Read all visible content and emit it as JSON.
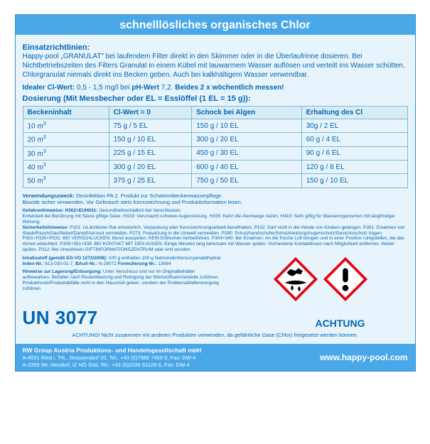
{
  "title": "schnelllösliches organisches Chlor",
  "sections": {
    "einsatz_hdr": "Einsatzrichtlinien:",
    "einsatz_text": "Happy-pool „GRANULAT\" bei laufendem Filter direkt in den Skimmer oder in die Überlaufrinne dosieren. Bei Nichtbetriebszeiten des Filters Granulat in einem Kübel mit lauwarmem Wasser auflösen und verteilt ins Wasser schütten. Chlorgranulat niemals direkt ins Becken geben. Auch bei kalkhältigem Wasser verwendbar.",
    "ideal_pre": "Idealer Cl-Wert:",
    "ideal_val": "0,5 - 1,5 mg/l bei",
    "ideal_ph": "pH-Wert",
    "ideal_phv": "7,2.",
    "ideal_post": "Beides 2 x wöchentlich messen!",
    "dosierung_hdr": "Dosierung (Mit Messbecher oder EL = Esslöffel (1 EL = 15 g)):"
  },
  "table": {
    "headers": [
      "Beckeninhalt",
      "Cl-Wert = 0",
      "Schock bei Algen",
      "Erhaltung des Cl"
    ],
    "rows": [
      [
        "10 m³",
        "75 g / 5 EL",
        "150 g / 10 EL",
        "30g / 2 EL"
      ],
      [
        "20 m³",
        "150 g / 10 EL",
        "300 g / 20 EL",
        "60 g / 4 EL"
      ],
      [
        "30 m³",
        "225 g / 15 EL",
        "450 g / 30 EL",
        "90 g / 6 EL"
      ],
      [
        "40 m³",
        "300 g / 20 EL",
        "600 g / 40 EL",
        "120 g / 8 EL"
      ],
      [
        "50 m³",
        "375 g / 25 EL",
        "750 g / 50 EL",
        "150 g / 10 EL"
      ]
    ]
  },
  "usage": {
    "zweck_b": "Verwendungszweck:",
    "zweck": " Desinfektion PA 2. Produkt zur Schwimmbeckenwasserpflege.",
    "biozide": "Biozide sicher verwenden. Vor Gebrauch stets Kennzeichnung und Produktinformation lesen."
  },
  "hazard": {
    "gefahr_b": "Gefahrenhinweise: H302+EUH031:",
    "gefahr": " Gesundheitsschädlich bei Verschlucken.",
    "gefahr2": "Entwickelt bei Berührung mit Säure giftige Gase. H319: Verursacht schwere Augenreizung. H335: Kann die Atemwege reizen. H410: Sehr giftig für Wasserorganismen mit langfristiger Wirkung.",
    "sicher_b": "Sicherheitshinweise:",
    "sicher": " P101: Ist ärztlicher Rat erforderlich, Verpackung oder Kennzeichnungsetikett bereithalten. P102: Darf nicht in die Hände von Kindern gelangen. P261: Einatmen von Staub/Rauch/Gas/Nebel/Dampf/Aerosol vermeiden. P273: Freisetzung in die Umwelt vermeiden. P280: Schutzhandschuhe/Schutzkleidung/Augenschutz/Gesichtsschutz tragen. P301+P330+P331: BEI VERSCHLUCKEN: Mund ausspülen. KEIN Erbrechen herbeiführen. P304+340: Bei Einatmen: An die frische Luft bringen und in einer Position ruhigstellen, die das Atmen erleichtert. P305+351+338: BEI KONTAKT MIT DEN AUGEN: Einige Minuten lang behutsam mit Wasser spülen. Vorhandene Kontaktlinsen nach Möglichkeit entfernen. Weiter spülen. P312: Bei Unwohlsein GIFTINFORMATIONSZENTRUM oder Arzt anrufen.",
    "inhalt_b": "Inhaltsstoff (gemäß EG-VO 1272/2008):",
    "inhalt": " 100 g enthalten 100 g Natriumdichlorisocyanatdihydrat,",
    "index_b": "Index-Nr.:",
    "index": " 613-030-01-7,",
    "baua_b": "BAuA-Nr.:",
    "baua": " N-28072",
    "form_b": "Formulierung-Nr.:",
    "form": " 13084",
    "lager_b": "Hinweise zur Lagerung/Entsorgung:",
    "lager": " Unter Verschluss und nur im Originalbehälter aufbewahren. Behälter nach Restentleerung und Reinigung der Wertstoffsammelstelle zuführen. Produktreste/Produktabfälle nicht in den Hausmüll geben, sondern der Problemabfallentsorgung zuführen."
  },
  "un": "UN 3077",
  "achtung": "ACHTUNG",
  "warning": "ACHTUNG! Nicht zusammen mit anderen Produkten verwenden, da gefährliche Gase (Chlor) freigesetzt werden können.",
  "footer": {
    "name": "RW Group Austria Produktions- und Handelsgesellschaft mbH",
    "addr1": "A-4551 Ried i. Trk., Grossendorf 20, Tel.: +43 (0)7588 7400-0,   Fax: DW-4",
    "addr2": "A-2355 Wr. Neudorf, IZ NÖ Süd, Tel.: +43 (0)2236 61128-0,   Fax: DW-4",
    "url": "www.happy-pool.com"
  },
  "colors": {
    "blue_bg": "#4aa8e8",
    "light_bg": "#e8f4fb",
    "text_blue": "#0066b3",
    "ghs_red": "#e30613"
  }
}
